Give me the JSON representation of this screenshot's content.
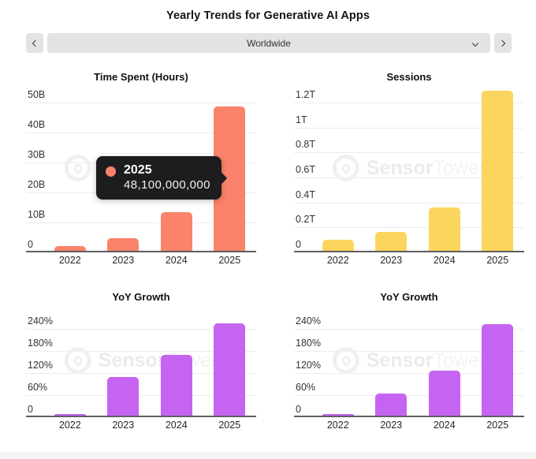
{
  "header": {
    "title": "Yearly Trends for Generative AI Apps"
  },
  "selector": {
    "value": "Worldwide",
    "prev_icon": "chevron-left",
    "next_icon": "chevron-right",
    "dropdown_icon": "chevron-down"
  },
  "watermark": {
    "logo_icon": "sensor-tower-ring",
    "word1": "Sensor",
    "word2": "Tower"
  },
  "tooltip": {
    "label": "2025",
    "value": "48,100,000,000",
    "dot_color": "#fb826b"
  },
  "colors": {
    "time_spent_bar": "#fb826b",
    "sessions_bar": "#fbd65e",
    "yoy_bar": "#c664f2",
    "gridline": "#ececec",
    "axis_line": "#5e5e5e",
    "control_bg": "#e3e3e3",
    "tooltip_bg": "#1d1d1f"
  },
  "chart_data": [
    {
      "id": "time_spent",
      "type": "bar",
      "title": "Time Spent (Hours)",
      "categories": [
        "2022",
        "2023",
        "2024",
        "2025"
      ],
      "values": [
        1.6,
        4.3,
        13,
        48.1
      ],
      "unit": "billions of hours",
      "exact_2025": "48,100,000,000",
      "bar_color": "#fb826b",
      "ymax": 50,
      "ylim": [
        0,
        50
      ],
      "grid": "horizontal",
      "legend": "none",
      "yticks": [
        {
          "label": "50B",
          "value": 50
        },
        {
          "label": "40B",
          "value": 40
        },
        {
          "label": "30B",
          "value": 30
        },
        {
          "label": "20B",
          "value": 20
        },
        {
          "label": "10B",
          "value": 10
        },
        {
          "label": "0",
          "value": 0
        }
      ]
    },
    {
      "id": "sessions",
      "type": "bar",
      "title": "Sessions",
      "categories": [
        "2022",
        "2023",
        "2024",
        "2025"
      ],
      "values": [
        0.09,
        0.15,
        0.35,
        1.28
      ],
      "unit": "trillions of sessions",
      "bar_color": "#fbd65e",
      "ymax": 1.2,
      "ylim": [
        0,
        1.2
      ],
      "grid": "horizontal",
      "legend": "none",
      "yticks": [
        {
          "label": "1.2T",
          "value": 1.2
        },
        {
          "label": "1T",
          "value": 1.0
        },
        {
          "label": "0.8T",
          "value": 0.8
        },
        {
          "label": "0.6T",
          "value": 0.6
        },
        {
          "label": "0.4T",
          "value": 0.4
        },
        {
          "label": "0.2T",
          "value": 0.2
        },
        {
          "label": "0",
          "value": 0
        }
      ]
    },
    {
      "id": "yoy_growth_time_spent",
      "type": "bar",
      "title": "YoY Growth",
      "categories": [
        "2022",
        "2023",
        "2024",
        "2025"
      ],
      "values": [
        2,
        105,
        165,
        250
      ],
      "unit": "percent",
      "bar_color": "#c664f2",
      "ymax": 240,
      "ylim": [
        0,
        240
      ],
      "grid": "horizontal",
      "legend": "none",
      "yticks": [
        {
          "label": "240%",
          "value": 240
        },
        {
          "label": "180%",
          "value": 180
        },
        {
          "label": "120%",
          "value": 120
        },
        {
          "label": "60%",
          "value": 60
        },
        {
          "label": "0",
          "value": 0
        }
      ]
    },
    {
      "id": "yoy_growth_sessions",
      "type": "bar",
      "title": "YoY Growth",
      "categories": [
        "2022",
        "2023",
        "2024",
        "2025"
      ],
      "values": [
        1,
        60,
        122,
        248
      ],
      "unit": "percent",
      "bar_color": "#c664f2",
      "ymax": 240,
      "ylim": [
        0,
        240
      ],
      "grid": "horizontal",
      "legend": "none",
      "yticks": [
        {
          "label": "240%",
          "value": 240
        },
        {
          "label": "180%",
          "value": 180
        },
        {
          "label": "120%",
          "value": 120
        },
        {
          "label": "60%",
          "value": 60
        },
        {
          "label": "0",
          "value": 0
        }
      ]
    }
  ]
}
